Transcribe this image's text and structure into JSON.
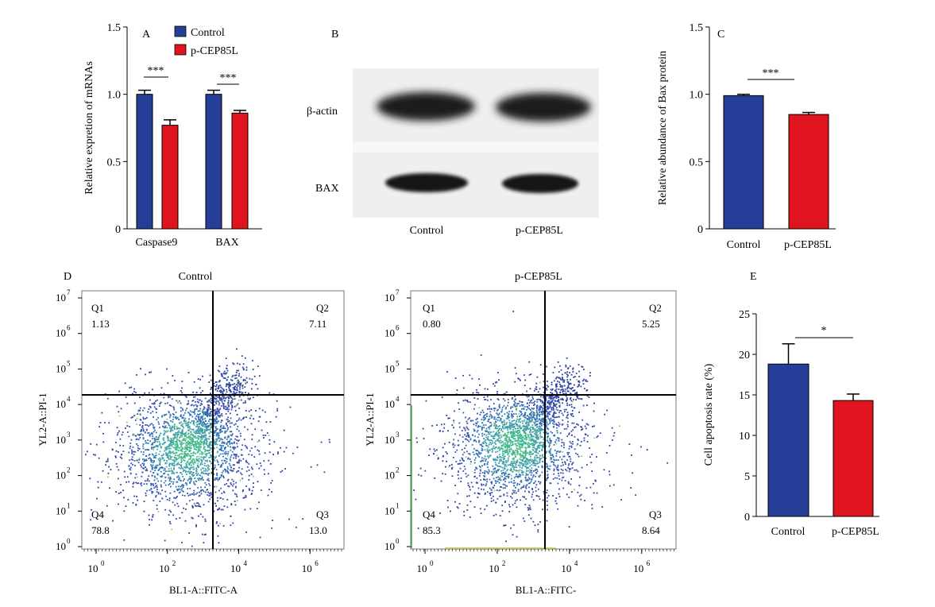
{
  "colors": {
    "control": "#253f99",
    "treated": "#e0141e",
    "axis": "#000000"
  },
  "chart_data": [
    {
      "panel": "A",
      "type": "bar",
      "categories": [
        "Caspase9",
        "BAX"
      ],
      "series": [
        {
          "name": "Control",
          "values": [
            1.0,
            1.0
          ],
          "errors": [
            0.03,
            0.03
          ]
        },
        {
          "name": "p-CEP85L",
          "values": [
            0.77,
            0.86
          ],
          "errors": [
            0.04,
            0.02
          ]
        }
      ],
      "ylabel": "Relative expretion of mRNAs",
      "ylim": [
        0,
        1.5
      ],
      "yticks": [
        "0",
        "0.5",
        "1.0",
        "1.5"
      ],
      "significance": [
        "***",
        "***"
      ],
      "legend_position": "top"
    },
    {
      "panel": "B",
      "type": "blot",
      "lanes": [
        "Control",
        "p-CEP85L"
      ],
      "rows": [
        "β-actin",
        "BAX"
      ]
    },
    {
      "panel": "C",
      "type": "bar",
      "categories": [
        "Control",
        "p-CEP85L"
      ],
      "values": [
        0.99,
        0.85
      ],
      "errors": [
        0.01,
        0.015
      ],
      "ylabel": "Relative abundance of Bax protein",
      "ylim": [
        0,
        1.5
      ],
      "yticks": [
        "0",
        "0.5",
        "1.0",
        "1.5"
      ],
      "significance": "***"
    },
    {
      "panel": "D",
      "type": "scatter",
      "plots": [
        {
          "title": "Control",
          "quadrants": {
            "Q1": "1.13",
            "Q2": "7.11",
            "Q3": "13.0",
            "Q4": "78.8"
          }
        },
        {
          "title": "p-CEP85L",
          "quadrants": {
            "Q1": "0.80",
            "Q2": "5.25",
            "Q3": "8.64",
            "Q4": "85.3"
          }
        }
      ],
      "xlabels": [
        "BL1-A::FITC-A",
        "BL1-A::FITC-"
      ],
      "ylabel": "YL2-A::PI-1",
      "xticks": [
        "10",
        "10",
        "10",
        "10"
      ],
      "xtick_exponents": [
        "0",
        "2",
        "4",
        "6"
      ],
      "yticks": [
        "10",
        "10",
        "10",
        "10",
        "10",
        "10",
        "10",
        "10"
      ],
      "ytick_exponents": [
        "0",
        "1",
        "2",
        "3",
        "4",
        "5",
        "6",
        "7"
      ],
      "log_scale": true
    },
    {
      "panel": "E",
      "type": "bar",
      "categories": [
        "Control",
        "p-CEP85L"
      ],
      "values": [
        18.8,
        14.3
      ],
      "errors": [
        2.5,
        0.8
      ],
      "ylabel": "Cell apoptosis rate (%)",
      "ylim": [
        0,
        25
      ],
      "yticks": [
        "0",
        "5",
        "10",
        "15",
        "20",
        "25"
      ],
      "significance": "*"
    }
  ]
}
